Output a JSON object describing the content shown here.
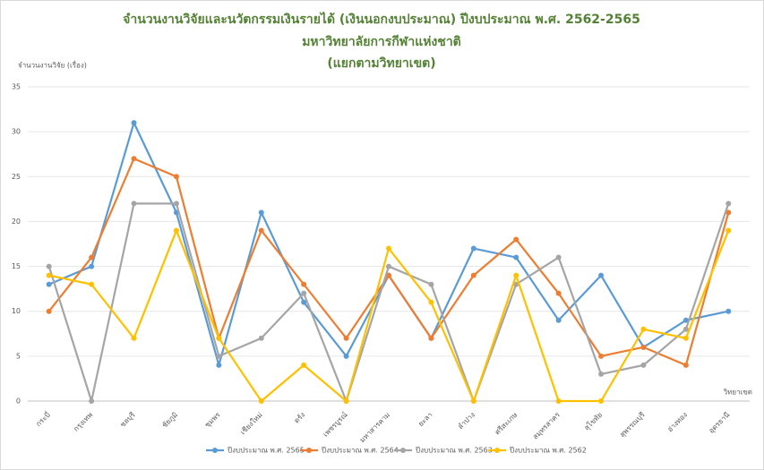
{
  "chart_data": {
    "type": "line",
    "title": "จำนวนงานวิจัยและนวัตกรรมเงินรายได้ (เงินนอกงบประมาณ) ปีงบประมาณ พ.ศ. 2562-2565",
    "subtitle": [
      "มหาวิทยาลัยการกีฬาแห่งชาติ",
      "(แยกตามวิทยาเขต)"
    ],
    "y_label": "จำนวนงานวิจัย (เรื่อง)",
    "x_label": "วิทยาเขต",
    "categories": [
      "กระบี่",
      "กรุงเทพ",
      "ชลบุรี",
      "ชัยภูมิ",
      "ชุมพร",
      "เชียงใหม่",
      "ตรัง",
      "เพชรบูรณ์",
      "มหาสารคาม",
      "ยะลา",
      "ลำปาง",
      "ศรีสะเกษ",
      "สมุทรสาคร",
      "สุโขทัย",
      "สุพรรณบุรี",
      "อ่างทอง",
      "อุดรธานี"
    ],
    "series": [
      {
        "name": "ปีงบประมาณ พ.ศ. 2565",
        "color": "#5b9bd5",
        "values": [
          13,
          15,
          31,
          21,
          4,
          21,
          11,
          5,
          14,
          7,
          17,
          16,
          9,
          14,
          6,
          9,
          10
        ]
      },
      {
        "name": "ปีงบประมาณ พ.ศ. 2564",
        "color": "#ed7d31",
        "values": [
          10,
          16,
          27,
          25,
          7,
          19,
          13,
          7,
          14,
          7,
          14,
          18,
          12,
          5,
          6,
          4,
          21
        ]
      },
      {
        "name": "ปีงบประมาณ พ.ศ. 2563",
        "color": "#a5a5a5",
        "values": [
          15,
          0,
          22,
          22,
          5,
          7,
          12,
          0,
          15,
          13,
          0,
          13,
          16,
          3,
          4,
          8,
          22
        ]
      },
      {
        "name": "ปีงบประมาณ พ.ศ. 2562",
        "color": "#ffc000",
        "values": [
          14,
          13,
          7,
          19,
          7,
          0,
          4,
          0,
          17,
          11,
          0,
          14,
          0,
          0,
          8,
          7,
          19
        ]
      }
    ],
    "ylim": [
      0,
      35
    ],
    "yticks": [
      0,
      5,
      10,
      15,
      20,
      25,
      30,
      35
    ],
    "grid": true
  }
}
